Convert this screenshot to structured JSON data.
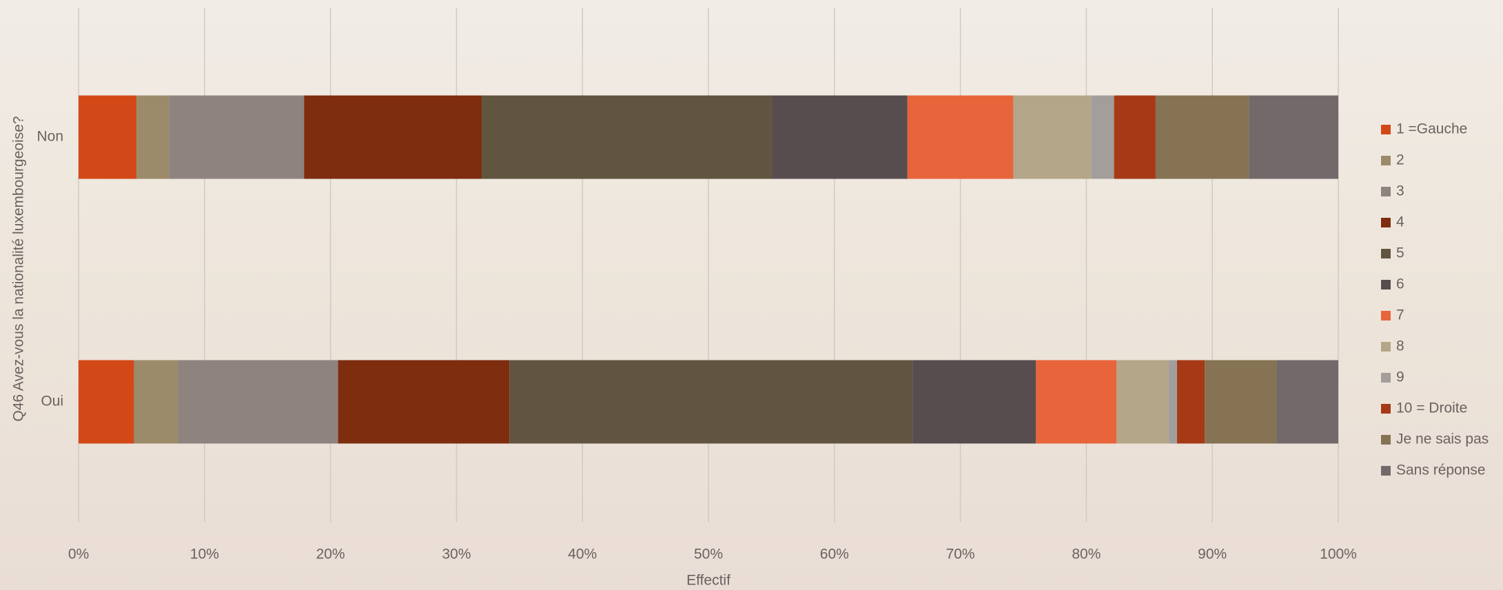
{
  "chart_data": {
    "type": "stacked-bar-horizontal",
    "y_axis_label": "Q46 Avez-vous la nationalité luxembourgeoise?",
    "x_axis_label": "Effectif",
    "categories": [
      "Non",
      "Oui"
    ],
    "xlim": [
      0,
      100
    ],
    "xticks": [
      {
        "value": 0,
        "label": "0%"
      },
      {
        "value": 10,
        "label": "10%"
      },
      {
        "value": 20,
        "label": "20%"
      },
      {
        "value": 30,
        "label": "30%"
      },
      {
        "value": 40,
        "label": "40%"
      },
      {
        "value": 50,
        "label": "50%"
      },
      {
        "value": 60,
        "label": "60%"
      },
      {
        "value": 70,
        "label": "70%"
      },
      {
        "value": 80,
        "label": "80%"
      },
      {
        "value": 90,
        "label": "90%"
      },
      {
        "value": 100,
        "label": "100%"
      }
    ],
    "grid": true,
    "legend": "right",
    "series": [
      {
        "name": "1 =Gauche",
        "color": "#d34817",
        "values": [
          4.6,
          4.4
        ]
      },
      {
        "name": "2",
        "color": "#9b8b6a",
        "values": [
          2.6,
          3.5
        ]
      },
      {
        "name": "3",
        "color": "#8f8380",
        "values": [
          10.7,
          12.7
        ]
      },
      {
        "name": "4",
        "color": "#7e2d0f",
        "values": [
          14.1,
          13.6
        ]
      },
      {
        "name": "5",
        "color": "#615540",
        "values": [
          23.0,
          32.0
        ]
      },
      {
        "name": "6",
        "color": "#574d4f",
        "values": [
          10.8,
          9.8
        ]
      },
      {
        "name": "7",
        "color": "#e8643a",
        "values": [
          8.4,
          6.4
        ]
      },
      {
        "name": "8",
        "color": "#b4a688",
        "values": [
          6.2,
          4.1
        ]
      },
      {
        "name": "9",
        "color": "#a39e9c",
        "values": [
          1.8,
          0.7
        ]
      },
      {
        "name": "10 = Droite",
        "color": "#a63a16",
        "values": [
          3.3,
          2.2
        ]
      },
      {
        "name": "Je ne sais pas",
        "color": "#857354",
        "values": [
          7.4,
          5.7
        ]
      },
      {
        "name": "Sans réponse",
        "color": "#73696a",
        "values": [
          7.1,
          4.9
        ]
      }
    ]
  }
}
